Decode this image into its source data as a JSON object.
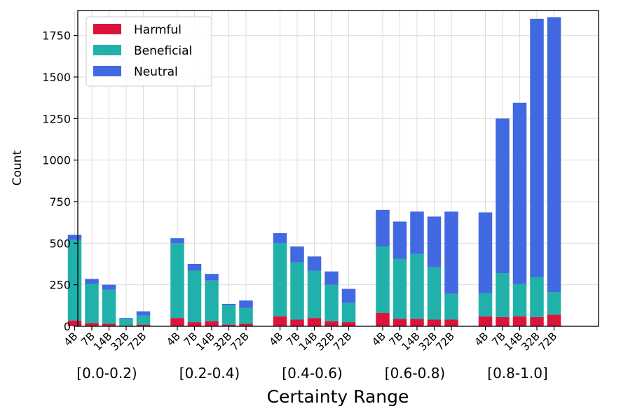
{
  "chart_data": {
    "type": "bar",
    "stacked": true,
    "title": "",
    "xlabel": "Certainty Range",
    "ylabel": "Count",
    "ylim": [
      0,
      1900
    ],
    "yticks": [
      0,
      250,
      500,
      750,
      1000,
      1250,
      1500,
      1750
    ],
    "grid": true,
    "legend_position": "top-left",
    "models": [
      "4B",
      "7B",
      "14B",
      "32B",
      "72B"
    ],
    "groups": [
      "[0.0-0.2)",
      "[0.2-0.4)",
      "[0.4-0.6)",
      "[0.6-0.8)",
      "[0.8-1.0]"
    ],
    "series": [
      {
        "name": "Harmful",
        "color": "#dc143c",
        "values": [
          [
            35,
            20,
            15,
            5,
            10
          ],
          [
            50,
            25,
            30,
            10,
            15
          ],
          [
            60,
            40,
            50,
            30,
            25
          ],
          [
            80,
            45,
            45,
            40,
            40
          ],
          [
            60,
            55,
            60,
            55,
            70
          ]
        ]
      },
      {
        "name": "Beneficial",
        "color": "#20b2aa",
        "values": [
          [
            485,
            235,
            205,
            40,
            55
          ],
          [
            450,
            310,
            245,
            115,
            95
          ],
          [
            440,
            345,
            285,
            220,
            115
          ],
          [
            400,
            360,
            390,
            315,
            155
          ],
          [
            140,
            265,
            195,
            240,
            135
          ]
        ]
      },
      {
        "name": "Neutral",
        "color": "#4169e1",
        "values": [
          [
            30,
            30,
            30,
            5,
            25
          ],
          [
            30,
            40,
            40,
            10,
            45
          ],
          [
            60,
            95,
            85,
            80,
            85
          ],
          [
            220,
            225,
            255,
            305,
            495
          ],
          [
            485,
            930,
            1090,
            1555,
            1655
          ]
        ]
      }
    ]
  }
}
